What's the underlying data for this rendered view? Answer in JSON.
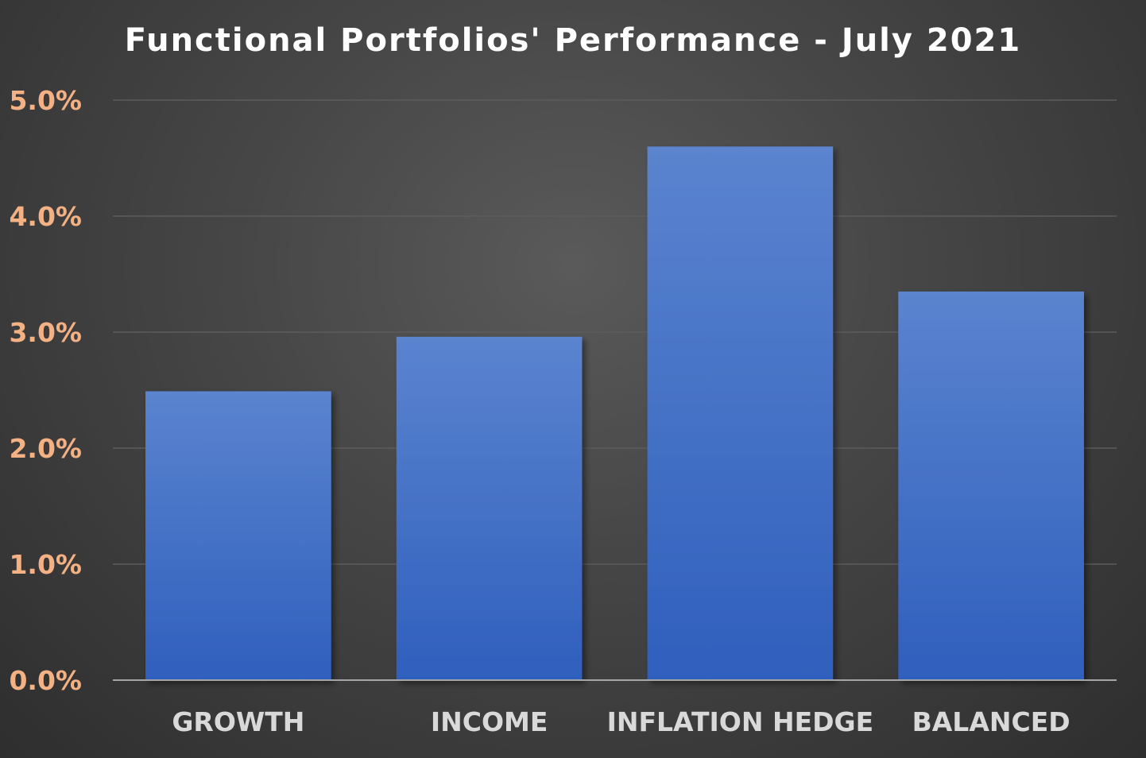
{
  "chart_data": {
    "type": "bar",
    "title": "Functional Portfolios' Performance - July 2021",
    "categories": [
      "GROWTH",
      "INCOME",
      "INFLATION HEDGE",
      "BALANCED"
    ],
    "values": [
      2.49,
      2.96,
      4.6,
      3.35
    ],
    "ylim": [
      0,
      5
    ],
    "y_ticks": [
      "0.0%",
      "1.0%",
      "2.0%",
      "3.0%",
      "4.0%",
      "5.0%"
    ],
    "grid": true,
    "legend": "none",
    "xlabel": "",
    "ylabel": "",
    "colors": {
      "bar_top": "#5b84cf",
      "bar_bottom": "#2f5fbd",
      "tick_label": "#f4b183",
      "category_label": "#d9d9d9",
      "gridline": "#5c5c5c",
      "axis_line": "#a6a6a6"
    }
  }
}
